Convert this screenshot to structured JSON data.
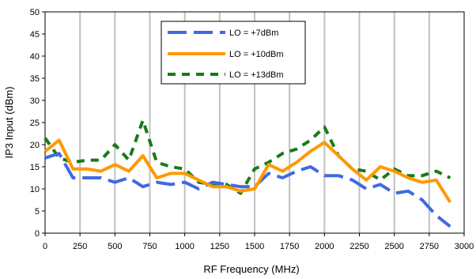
{
  "chart_data": {
    "type": "line",
    "xlabel": "RF Frequency (MHz)",
    "ylabel": "IP3 Input (dBm)",
    "xlim": [
      0,
      3000
    ],
    "ylim": [
      0,
      50
    ],
    "x_ticks": [
      0,
      250,
      500,
      750,
      1000,
      1250,
      1500,
      1750,
      2000,
      2250,
      2500,
      2750,
      3000
    ],
    "y_ticks": [
      0,
      5,
      10,
      15,
      20,
      25,
      30,
      35,
      40,
      45,
      50
    ],
    "x_tick_labels": [
      "0",
      "250",
      "500",
      "750",
      "1000",
      "1250",
      "1500",
      "1750",
      "2000",
      "2250",
      "2500",
      "2750",
      "3000"
    ],
    "y_tick_labels": [
      "0",
      "5",
      "10",
      "15",
      "20",
      "25",
      "30",
      "35",
      "40",
      "45",
      "50"
    ],
    "grid": {
      "vertical": true,
      "horizontal": false
    },
    "legend_position": "top-center",
    "x": [
      0,
      100,
      200,
      300,
      400,
      500,
      600,
      700,
      800,
      900,
      1000,
      1100,
      1200,
      1300,
      1400,
      1500,
      1600,
      1700,
      1800,
      1900,
      2000,
      2100,
      2200,
      2300,
      2400,
      2500,
      2600,
      2700,
      2800,
      2900
    ],
    "series": [
      {
        "name": "LO = +7dBm",
        "color": "#4169e1",
        "style": "long-dash",
        "values": [
          17,
          18,
          12.5,
          12.5,
          12.5,
          11.5,
          12.5,
          10.5,
          11.5,
          11,
          11.5,
          10,
          11.5,
          11,
          10.5,
          10.5,
          13.5,
          12.5,
          14,
          15,
          13,
          13,
          12,
          10,
          11,
          9,
          9.5,
          7.5,
          4,
          1.5
        ]
      },
      {
        "name": "LO = +10dBm",
        "color": "#ff9900",
        "style": "solid",
        "values": [
          18.5,
          21,
          14.5,
          14.5,
          14,
          15.5,
          14,
          17.5,
          12.5,
          13.5,
          13.5,
          12,
          10.5,
          10.5,
          9.5,
          10,
          15.5,
          14,
          16,
          18.5,
          20.5,
          17.5,
          14.5,
          12,
          15,
          14,
          12.5,
          11.5,
          12,
          7
        ]
      },
      {
        "name": "LO = +13dBm",
        "color": "#1a7a1a",
        "style": "short-dash",
        "values": [
          21.5,
          17,
          16,
          16.5,
          16.5,
          20,
          16.5,
          25.5,
          16,
          15,
          14.5,
          11.5,
          11,
          11,
          9,
          14.5,
          16,
          18,
          19,
          21,
          24,
          17.5,
          14.5,
          14,
          12,
          14.5,
          13,
          13,
          14,
          12.5
        ]
      }
    ]
  }
}
